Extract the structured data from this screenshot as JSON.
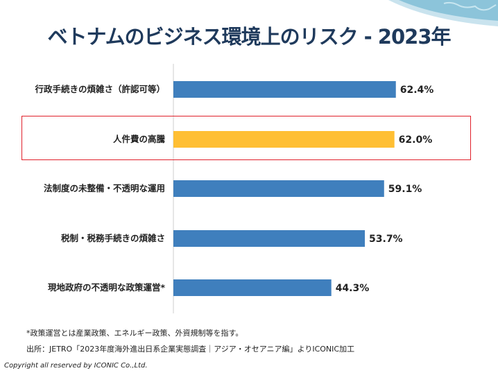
{
  "title": "ベトナムのビジネス環境上のリスク - 2023年",
  "chart_data": {
    "type": "bar",
    "orientation": "horizontal",
    "title": "ベトナムのビジネス環境上のリスク - 2023年",
    "categories": [
      "行政手続きの煩雑さ（許認可等）",
      "人件費の高騰",
      "法制度の未整備・不透明な運用",
      "税制・税務手続きの煩雑さ",
      "現地政府の不透明な政策運営*"
    ],
    "values": [
      62.4,
      62.0,
      59.1,
      53.7,
      44.3
    ],
    "labels": [
      "62.4%",
      "62.0%",
      "59.1%",
      "53.7%",
      "44.3%"
    ],
    "highlight_index": 1,
    "colors": {
      "default": "#3f7fbd",
      "highlight": "#ffbf33",
      "highlight_box": "#e0202a"
    },
    "xlim": [
      0,
      100
    ],
    "grid": false
  },
  "footnote": "*政策運営とは産業政策、エネルギー政策、外資規制等を指す。",
  "source": "出所：JETRO「2023年度海外進出日系企業実態調査｜アジア・オセアニア編」よりICONIC加工",
  "copyright": "Copyright all reserved by ICONIC Co.,Ltd."
}
